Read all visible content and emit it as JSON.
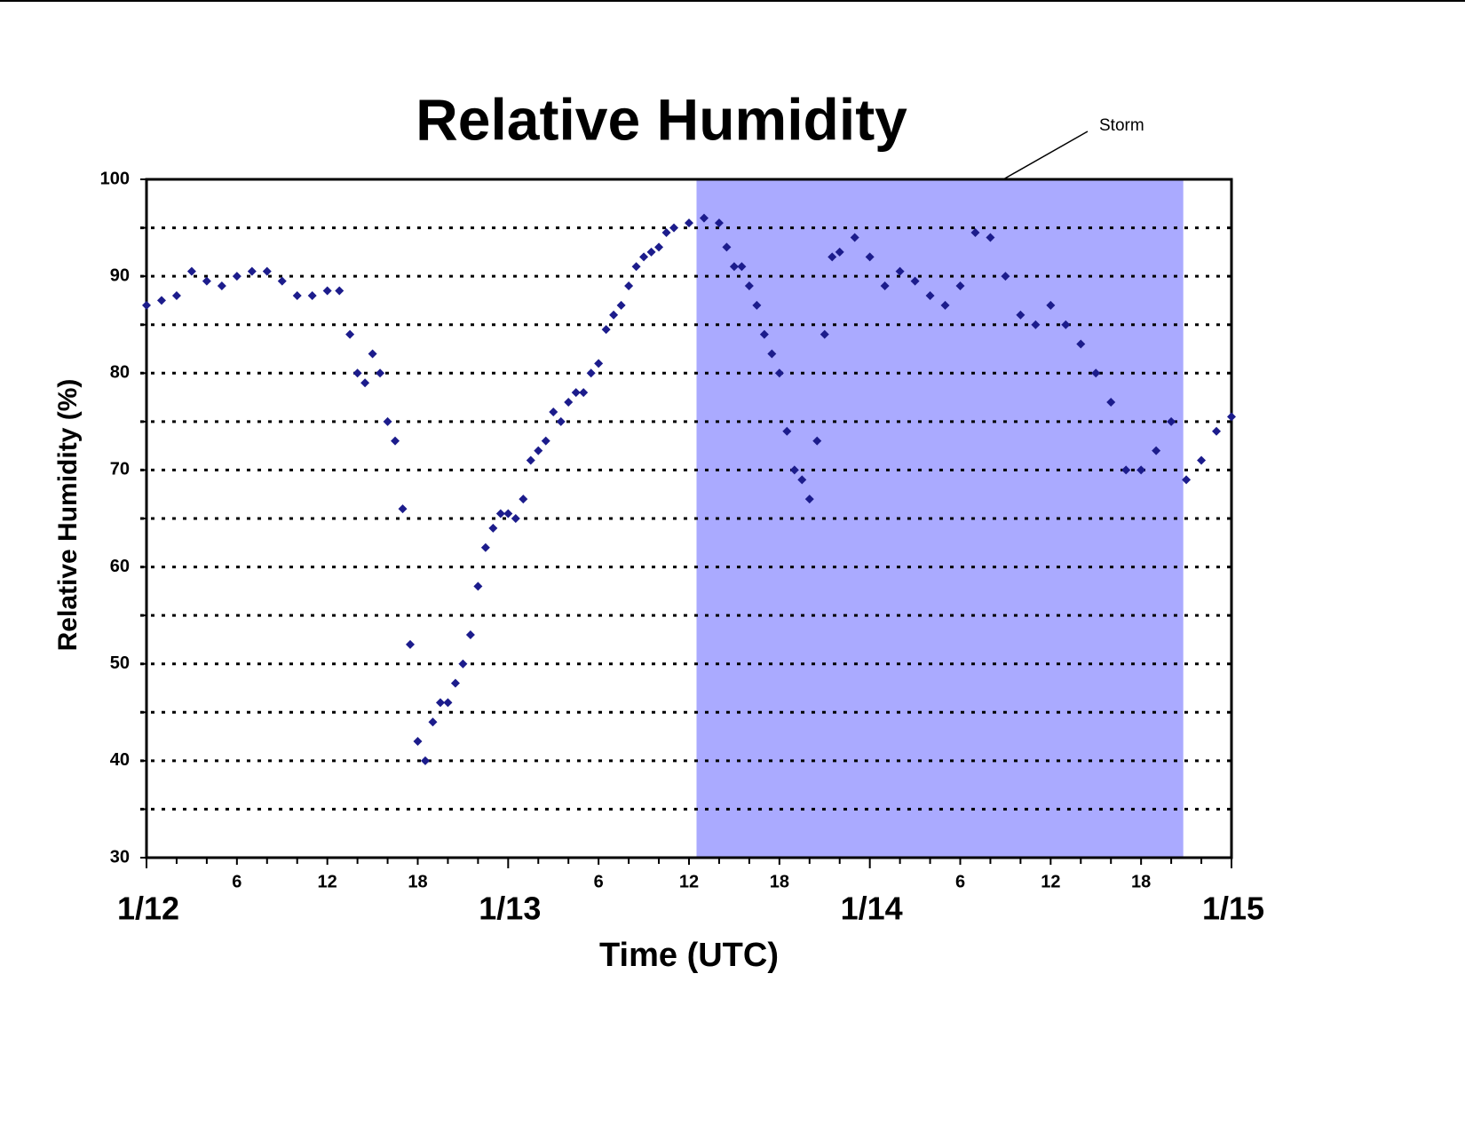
{
  "chart_data": {
    "type": "scatter",
    "title": "Relative Humidity",
    "ylabel": "Relative Humidity (%)",
    "xlabel": "Time (UTC)",
    "color": "#1c1c8c",
    "shaded_region": {
      "x": [
        36.5,
        68.8
      ],
      "label": "Storm",
      "color": "#aaaaff"
    },
    "xlim": [
      0,
      72
    ],
    "xticks": [
      {
        "value": 6,
        "label": "6"
      },
      {
        "value": 12,
        "label": "12"
      },
      {
        "value": 18,
        "label": "18"
      },
      {
        "value": 30,
        "label": "6"
      },
      {
        "value": 36,
        "label": "12"
      },
      {
        "value": 42,
        "label": "18"
      },
      {
        "value": 54,
        "label": "6"
      },
      {
        "value": 60,
        "label": "12"
      },
      {
        "value": 66,
        "label": "18"
      }
    ],
    "xdate_ticks": [
      {
        "value": 0,
        "label": "1/12"
      },
      {
        "value": 24,
        "label": "1/13"
      },
      {
        "value": 48,
        "label": "1/14"
      },
      {
        "value": 72,
        "label": "1/15"
      }
    ],
    "xminor_ticks": [
      2,
      4,
      8,
      10,
      14,
      16,
      20,
      22,
      26,
      28,
      32,
      34,
      38,
      40,
      44,
      46,
      50,
      52,
      56,
      58,
      62,
      64,
      68,
      70
    ],
    "ylim": [
      30,
      100
    ],
    "yticks": [
      30,
      40,
      50,
      60,
      70,
      80,
      90,
      100
    ],
    "yminor_ticks": [
      35,
      45,
      55,
      65,
      75,
      85,
      95
    ],
    "grid": true,
    "x": [
      0,
      1,
      2,
      3,
      4,
      5,
      6,
      7,
      8,
      9,
      10,
      11,
      12,
      12.8,
      13.5,
      14,
      14.5,
      15,
      15.5,
      16,
      16.5,
      17,
      17.5,
      18,
      18.5,
      19,
      19.5,
      20,
      20.5,
      21,
      21.5,
      22,
      22.5,
      23,
      23.5,
      24,
      24.5,
      25,
      25.5,
      26,
      26.5,
      27,
      27.5,
      28,
      28.5,
      29,
      29.5,
      30,
      30.5,
      31,
      31.5,
      32,
      32.5,
      33,
      33.5,
      34,
      34.5,
      35,
      36,
      37,
      38,
      38.5,
      39,
      39.5,
      40,
      40.5,
      41,
      41.5,
      42,
      42.5,
      43,
      43.5,
      44,
      44.5,
      45,
      45.5,
      46,
      47,
      48,
      49,
      50,
      51,
      52,
      53,
      54,
      55,
      56,
      57,
      58,
      59,
      60,
      61,
      62,
      63,
      64,
      65,
      66,
      67,
      68,
      69,
      70,
      71,
      72
    ],
    "values": [
      87,
      87.5,
      88,
      90.5,
      89.5,
      89,
      90,
      90.5,
      90.5,
      89.5,
      88,
      88,
      88.5,
      88.5,
      84,
      80,
      79,
      82,
      80,
      75,
      73,
      66,
      52,
      42,
      40,
      44,
      46,
      46,
      48,
      50,
      53,
      58,
      62,
      64,
      65.5,
      65.5,
      65,
      67,
      71,
      72,
      73,
      76,
      75,
      77,
      78,
      78,
      80,
      81,
      84.5,
      86,
      87,
      89,
      91,
      92,
      92.5,
      93,
      94.5,
      95,
      95.5,
      96,
      95.5,
      93,
      91,
      91,
      89,
      87,
      84,
      82,
      80,
      74,
      70,
      69,
      67,
      73,
      84,
      92,
      92.5,
      94,
      92,
      89,
      90.5,
      89.5,
      88,
      87,
      89,
      94.5,
      94,
      90,
      86,
      85,
      87,
      85,
      83,
      80,
      77,
      70,
      70,
      72,
      75,
      69,
      71,
      74,
      75.5
    ]
  }
}
